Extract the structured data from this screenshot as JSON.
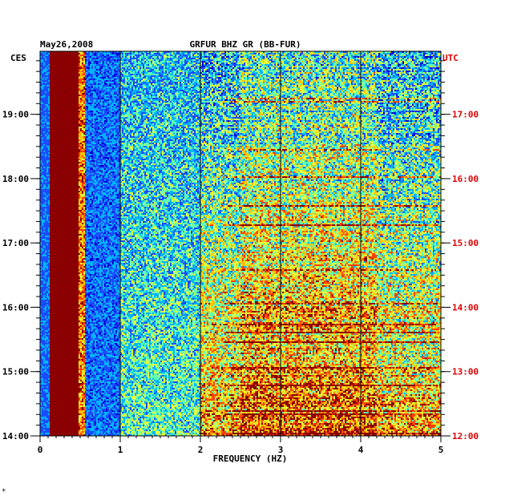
{
  "chart_data": {
    "type": "heatmap",
    "date": "May26,2008",
    "title": "GRFUR BHZ GR (BB-FUR)",
    "xlabel": "FREQUENCY (HZ)",
    "left_axis_label": "CES",
    "right_axis_label": "UTC",
    "xlim": [
      0,
      5
    ],
    "x_ticks": [
      "0",
      "1",
      "2",
      "3",
      "4",
      "5"
    ],
    "left_ticks": [
      {
        "label": "19:00",
        "hours": 19
      },
      {
        "label": "18:00",
        "hours": 18
      },
      {
        "label": "17:00",
        "hours": 17
      },
      {
        "label": "16:00",
        "hours": 16
      },
      {
        "label": "15:00",
        "hours": 15
      },
      {
        "label": "14:00",
        "hours": 14
      }
    ],
    "right_ticks": [
      {
        "label": "17:00",
        "hours": 17
      },
      {
        "label": "16:00",
        "hours": 16
      },
      {
        "label": "15:00",
        "hours": 15
      },
      {
        "label": "14:00",
        "hours": 14
      },
      {
        "label": "13:00",
        "hours": 13
      },
      {
        "label": "12:00",
        "hours": 12
      }
    ],
    "time_range_ces_hours": [
      14,
      19.98
    ],
    "grid_vertical_at_hz": [
      1,
      2,
      3,
      4
    ],
    "colormap": [
      "#00007f",
      "#0000d8",
      "#1a4cff",
      "#00b4ff",
      "#5fffb0",
      "#e0ff40",
      "#ffc000",
      "#ff4000",
      "#8b0000"
    ],
    "corner_mark": "*"
  }
}
